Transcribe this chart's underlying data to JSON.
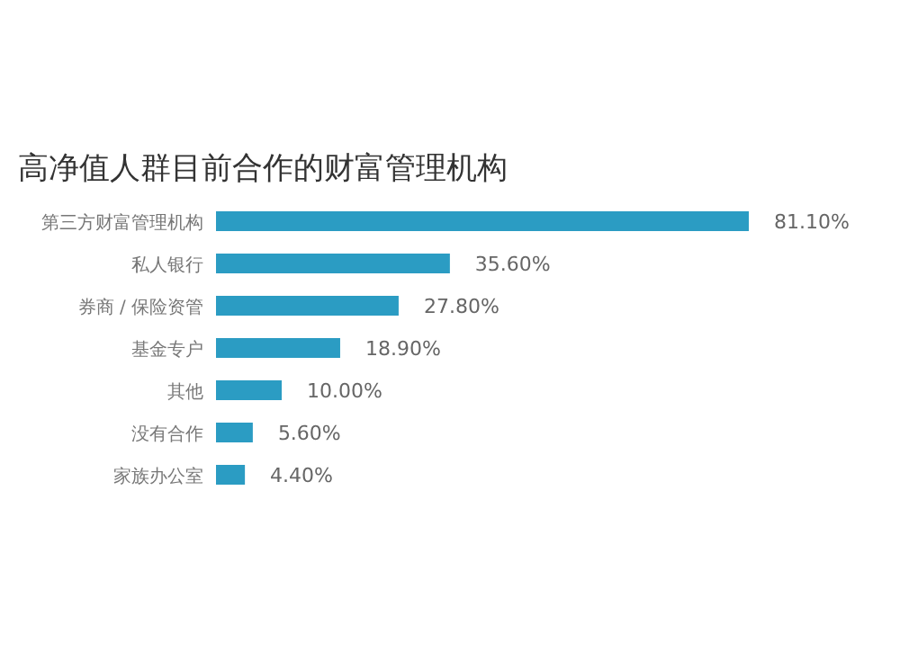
{
  "chart_data": {
    "type": "bar",
    "orientation": "horizontal",
    "title": "高净值人群目前合作的财富管理机构",
    "categories": [
      "第三方财富管理机构",
      "私人银行",
      "券商 / 保险资管",
      "基金专户",
      "其他",
      "没有合作",
      "家族办公室"
    ],
    "values": [
      81.1,
      35.6,
      27.8,
      18.9,
      10.0,
      5.6,
      4.4
    ],
    "value_labels": [
      "81.10%",
      "35.60%",
      "27.80%",
      "18.90%",
      "10.00%",
      "5.60%",
      "4.40%"
    ],
    "color": "#2b9cc3"
  }
}
